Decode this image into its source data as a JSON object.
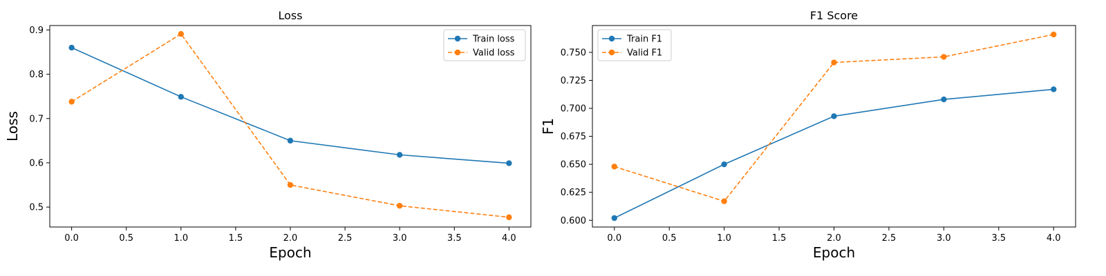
{
  "chart_data": [
    {
      "type": "line",
      "title": "Loss",
      "xlabel": "Epoch",
      "ylabel": "Loss",
      "x": [
        0,
        1,
        2,
        3,
        4
      ],
      "xlim": [
        -0.2,
        4.2
      ],
      "ylim": [
        0.455,
        0.91
      ],
      "xticks": [
        0.0,
        0.5,
        1.0,
        1.5,
        2.0,
        2.5,
        3.0,
        3.5,
        4.0
      ],
      "xtick_labels": [
        "0.0",
        "0.5",
        "1.0",
        "1.5",
        "2.0",
        "2.5",
        "3.0",
        "3.5",
        "4.0"
      ],
      "yticks": [
        0.5,
        0.6,
        0.7,
        0.8,
        0.9
      ],
      "ytick_labels": [
        "0.5",
        "0.6",
        "0.7",
        "0.8",
        "0.9"
      ],
      "grid": false,
      "legend": "upper right",
      "series": [
        {
          "name": "Train loss",
          "values": [
            0.86,
            0.749,
            0.65,
            0.618,
            0.599
          ],
          "color": "#1f77b4",
          "style": "solid",
          "marker": "circle"
        },
        {
          "name": "Valid loss",
          "values": [
            0.738,
            0.891,
            0.55,
            0.503,
            0.477
          ],
          "color": "#ff7f0e",
          "style": "dashed",
          "marker": "circle"
        }
      ]
    },
    {
      "type": "line",
      "title": "F1 Score",
      "xlabel": "Epoch",
      "ylabel": "F1",
      "x": [
        0,
        1,
        2,
        3,
        4
      ],
      "xlim": [
        -0.2,
        4.2
      ],
      "ylim": [
        0.594,
        0.774
      ],
      "xticks": [
        0.0,
        0.5,
        1.0,
        1.5,
        2.0,
        2.5,
        3.0,
        3.5,
        4.0
      ],
      "xtick_labels": [
        "0.0",
        "0.5",
        "1.0",
        "1.5",
        "2.0",
        "2.5",
        "3.0",
        "3.5",
        "4.0"
      ],
      "yticks": [
        0.6,
        0.625,
        0.65,
        0.675,
        0.7,
        0.725,
        0.75
      ],
      "ytick_labels": [
        "0.600",
        "0.625",
        "0.650",
        "0.675",
        "0.700",
        "0.725",
        "0.750"
      ],
      "grid": false,
      "legend": "upper left",
      "series": [
        {
          "name": "Train F1",
          "values": [
            0.602,
            0.65,
            0.693,
            0.708,
            0.717
          ],
          "color": "#1f77b4",
          "style": "solid",
          "marker": "circle"
        },
        {
          "name": "Valid F1",
          "values": [
            0.648,
            0.617,
            0.741,
            0.746,
            0.766
          ],
          "color": "#ff7f0e",
          "style": "dashed",
          "marker": "circle"
        }
      ]
    }
  ]
}
